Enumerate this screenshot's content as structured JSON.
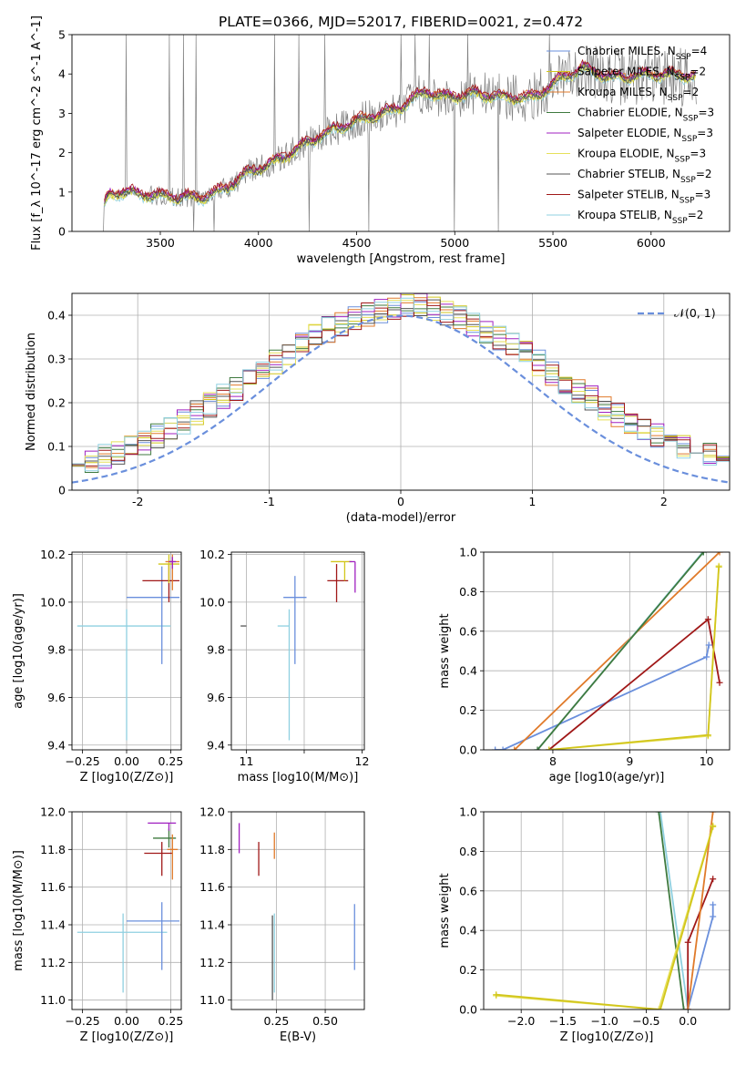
{
  "figure_title": "PLATE=0366, MJD=52017, FIBERID=0021, z=0.472",
  "colors": {
    "chabrier_miles": "#6a8fdc",
    "salpeter_miles": "#d2c61c",
    "kroupa_miles": "#e07a2a",
    "chabrier_elodie": "#3f7a3f",
    "salpeter_elodie": "#a020c0",
    "kroupa_elodie": "#e6e05a",
    "chabrier_stelib": "#555555",
    "salpeter_stelib": "#a01818",
    "kroupa_stelib": "#8fd0e0",
    "data": "#808080",
    "normal": "#6a8fdc"
  },
  "chart_data": [
    {
      "id": "spectrum",
      "type": "line",
      "title": "PLATE=0366, MJD=52017, FIBERID=0021, z=0.472",
      "xlabel": "wavelength [Angstrom, rest frame]",
      "ylabel": "Flux [f_λ 10^-17 erg cm^-2 s^-1 A^-1]",
      "xlim": [
        3050,
        6400
      ],
      "ylim": [
        0,
        5
      ],
      "xticks": [
        3500,
        4000,
        4500,
        5000,
        5500,
        6000
      ],
      "yticks": [
        0,
        1,
        2,
        3,
        4,
        5
      ],
      "grid": false,
      "legend_position": "top-right",
      "legend": [
        {
          "key": "chabrier_miles",
          "text": "Chabrier MILES, N_SSP=4"
        },
        {
          "key": "salpeter_miles",
          "text": "Salpeter MILES, N_SSP=2"
        },
        {
          "key": "kroupa_miles",
          "text": "Kroupa MILES, N_SSP=2"
        },
        {
          "key": "chabrier_elodie",
          "text": "Chabrier ELODIE, N_SSP=3"
        },
        {
          "key": "salpeter_elodie",
          "text": "Salpeter ELODIE, N_SSP=3"
        },
        {
          "key": "kroupa_elodie",
          "text": "Kroupa ELODIE, N_SSP=3"
        },
        {
          "key": "chabrier_stelib",
          "text": "Chabrier STELIB, N_SSP=2"
        },
        {
          "key": "salpeter_stelib",
          "text": "Salpeter STELIB, N_SSP=3"
        },
        {
          "key": "kroupa_stelib",
          "text": "Kroupa STELIB, N_SSP=2"
        }
      ],
      "continuum": {
        "x": [
          3210,
          3240,
          3300,
          3500,
          3700,
          3800,
          3950,
          4100,
          4300,
          4500,
          4700,
          4850,
          4950,
          5100,
          5250,
          5400,
          5550,
          5650,
          5800,
          6000,
          6200
        ],
        "y": [
          0.6,
          0.95,
          1.0,
          0.9,
          0.85,
          1.0,
          1.5,
          1.8,
          2.4,
          2.8,
          3.1,
          3.55,
          3.4,
          3.5,
          3.4,
          3.4,
          3.9,
          4.15,
          3.9,
          4.0,
          3.95
        ]
      },
      "model_offsets": {
        "chabrier_miles": 0.02,
        "salpeter_miles": -0.03,
        "kroupa_miles": 0.05,
        "chabrier_elodie": 0.0,
        "salpeter_elodie": 0.04,
        "kroupa_elodie": -0.05,
        "chabrier_stelib": -0.02,
        "salpeter_stelib": 0.08,
        "kroupa_stelib": -0.08
      }
    },
    {
      "id": "residuals",
      "type": "line",
      "xlabel": "(data-model)/error",
      "ylabel": "Normed distribution",
      "xlim": [
        -2.5,
        2.5
      ],
      "ylim": [
        0,
        0.45
      ],
      "xticks": [
        -2,
        -1,
        0,
        1,
        2
      ],
      "yticks": [
        0,
        0.1,
        0.2,
        0.3,
        0.4
      ],
      "grid": true,
      "legend_position": "top-right",
      "legend": [
        {
          "key": "normal",
          "text": "𝒩(0, 1)"
        }
      ],
      "bin_width": 0.1,
      "bin_start": -2.5
    },
    {
      "id": "age-vs-Z",
      "type": "scatter",
      "xlabel": "Z [log10(Z/Z⊙)]",
      "ylabel": "age  [log10(age/yr)]",
      "xlim": [
        -0.31,
        0.31
      ],
      "ylim": [
        9.38,
        10.21
      ],
      "xticks": [
        -0.25,
        0.0,
        0.25
      ],
      "xticklabels": [
        "−0.25",
        "0.00",
        "0.25"
      ],
      "yticks": [
        9.4,
        9.6,
        9.8,
        10.0,
        10.2
      ],
      "yticklabels": [
        "9.4",
        "9.6",
        "9.8",
        "10.0",
        "10.2"
      ],
      "grid": true,
      "points": [
        {
          "key": "kroupa_stelib",
          "x": 0.0,
          "y": 9.9,
          "xerr": [
            0.28,
            0.25
          ],
          "yerr": [
            0.48,
            0.07
          ]
        },
        {
          "key": "chabrier_miles",
          "x": 0.2,
          "y": 10.02,
          "xerr": [
            0.2,
            0.1
          ],
          "yerr": [
            0.28,
            0.13
          ]
        },
        {
          "key": "salpeter_stelib",
          "x": 0.24,
          "y": 10.09,
          "xerr": [
            0.15,
            0.06
          ],
          "yerr": [
            0.09,
            0.07
          ]
        },
        {
          "key": "salpeter_miles",
          "x": 0.24,
          "y": 10.16,
          "xerr": [
            0.06,
            0.06
          ],
          "yerr": [
            0.08,
            0.04
          ]
        },
        {
          "key": "kroupa_miles",
          "x": 0.26,
          "y": 10.17,
          "xerr": [
            0.04,
            0.04
          ],
          "yerr": [
            0.12,
            0.03
          ]
        },
        {
          "key": "salpeter_elodie",
          "x": 0.26,
          "y": 10.17,
          "xerr": [
            0.02,
            0.02
          ],
          "yerr": [
            0.03,
            0.02
          ]
        }
      ]
    },
    {
      "id": "age-vs-mass",
      "type": "scatter",
      "xlabel": "mass [log10(M/M⊙)]",
      "ylabel": "",
      "xlim": [
        10.87,
        12.02
      ],
      "ylim": [
        9.38,
        10.21
      ],
      "xticks": [
        11,
        11.5,
        12
      ],
      "xticklabels": [
        "11",
        "",
        "12"
      ],
      "yticks": [
        9.4,
        9.6,
        9.8,
        10.0,
        10.2
      ],
      "yticklabels": [
        "9.4",
        "9.6",
        "9.8",
        "10.0",
        "10.2"
      ],
      "grid": true,
      "points": [
        {
          "key": "kroupa_stelib",
          "x": 11.37,
          "y": 9.9,
          "xerr": [
            0.1,
            0.0
          ],
          "yerr": [
            0.48,
            0.07
          ]
        },
        {
          "key": "chabrier_stelib",
          "x": 11.0,
          "y": 9.9,
          "xerr": [
            0.05,
            0.0
          ],
          "yerr": [
            0.0,
            0.0
          ]
        },
        {
          "key": "chabrier_miles",
          "x": 11.42,
          "y": 10.02,
          "xerr": [
            0.1,
            0.1
          ],
          "yerr": [
            0.28,
            0.09
          ]
        },
        {
          "key": "salpeter_stelib",
          "x": 11.78,
          "y": 10.09,
          "xerr": [
            0.08,
            0.1
          ],
          "yerr": [
            0.09,
            0.07
          ]
        },
        {
          "key": "salpeter_miles",
          "x": 11.85,
          "y": 10.17,
          "xerr": [
            0.12,
            0.06
          ],
          "yerr": [
            0.08,
            0.0
          ]
        },
        {
          "key": "salpeter_elodie",
          "x": 11.94,
          "y": 10.17,
          "xerr": [
            0.05,
            0.0
          ],
          "yerr": [
            0.13,
            0.0
          ]
        }
      ]
    },
    {
      "id": "weight-vs-age",
      "type": "line",
      "xlabel": "age  [log10(age/yr)]",
      "ylabel": "mass weight",
      "xlim": [
        7.1,
        10.3
      ],
      "ylim": [
        0,
        1
      ],
      "xticks": [
        8,
        9,
        10
      ],
      "yticks": [
        0,
        0.2,
        0.4,
        0.6,
        0.8,
        1.0
      ],
      "yticklabels": [
        "0.0",
        "0.2",
        "0.4",
        "0.6",
        "0.8",
        "1.0"
      ],
      "grid": true,
      "series": [
        {
          "key": "chabrier_miles",
          "x": [
            7.25,
            7.35,
            10.0,
            10.03
          ],
          "y": [
            0.0,
            0.0,
            0.47,
            0.53
          ]
        },
        {
          "key": "kroupa_miles",
          "x": [
            7.5,
            10.17
          ],
          "y": [
            0.0,
            1.0
          ]
        },
        {
          "key": "salpeter_stelib",
          "x": [
            7.95,
            10.02,
            10.17
          ],
          "y": [
            0.0,
            0.66,
            0.34
          ]
        },
        {
          "key": "kroupa_stelib",
          "x": [
            7.8,
            9.95
          ],
          "y": [
            0.0,
            1.0
          ]
        },
        {
          "key": "chabrier_elodie",
          "x": [
            7.8,
            9.96
          ],
          "y": [
            0.0,
            1.0
          ]
        },
        {
          "key": "kroupa_elodie",
          "x": [
            7.95,
            10.02,
            10.16
          ],
          "y": [
            0.0,
            0.07,
            0.93
          ]
        },
        {
          "key": "salpeter_miles",
          "x": [
            7.95,
            10.02,
            10.16
          ],
          "y": [
            0.0,
            0.075,
            0.925
          ]
        }
      ]
    },
    {
      "id": "mass-vs-Z",
      "type": "scatter",
      "xlabel": "Z [log10(Z/Z⊙)]",
      "ylabel": "mass [log10(M/M⊙)]",
      "xlim": [
        -0.31,
        0.31
      ],
      "ylim": [
        10.95,
        12.0
      ],
      "xticks": [
        -0.25,
        0.0,
        0.25
      ],
      "xticklabels": [
        "−0.25",
        "0.00",
        "0.25"
      ],
      "yticks": [
        11.0,
        11.2,
        11.4,
        11.6,
        11.8,
        12.0
      ],
      "yticklabels": [
        "11.0",
        "11.2",
        "11.4",
        "11.6",
        "11.8",
        "12.0"
      ],
      "grid": true,
      "points": [
        {
          "key": "kroupa_stelib",
          "x": -0.02,
          "y": 11.36,
          "xerr": [
            0.26,
            0.25
          ],
          "yerr": [
            0.32,
            0.1
          ]
        },
        {
          "key": "chabrier_miles",
          "x": 0.2,
          "y": 11.42,
          "xerr": [
            0.2,
            0.1
          ],
          "yerr": [
            0.26,
            0.1
          ]
        },
        {
          "key": "salpeter_stelib",
          "x": 0.2,
          "y": 11.78,
          "xerr": [
            0.1,
            0.06
          ],
          "yerr": [
            0.12,
            0.06
          ]
        },
        {
          "key": "chabrier_elodie",
          "x": 0.24,
          "y": 11.86,
          "xerr": [
            0.09,
            0.04
          ],
          "yerr": [
            0.05,
            0.05
          ]
        },
        {
          "key": "salpeter_elodie",
          "x": 0.24,
          "y": 11.94,
          "xerr": [
            0.12,
            0.04
          ],
          "yerr": [
            0.04,
            0.0
          ]
        },
        {
          "key": "kroupa_miles",
          "x": 0.26,
          "y": 11.8,
          "xerr": [
            0.03,
            0.03
          ],
          "yerr": [
            0.16,
            0.08
          ]
        }
      ]
    },
    {
      "id": "mass-vs-EBV",
      "type": "scatter",
      "xlabel": "E(B-V)",
      "ylabel": "",
      "xlim": [
        0.02,
        0.7
      ],
      "ylim": [
        10.95,
        12.0
      ],
      "xticks": [
        0.25,
        0.5
      ],
      "xticklabels": [
        "0.25",
        "0.50"
      ],
      "yticks": [
        11.0,
        11.2,
        11.4,
        11.6,
        11.8,
        12.0
      ],
      "yticklabels": [
        "11.0",
        "11.2",
        "11.4",
        "11.6",
        "11.8",
        "12.0"
      ],
      "grid": true,
      "points": [
        {
          "key": "chabrier_stelib",
          "x": 0.23,
          "y": 11.2,
          "xerr": [
            0,
            0
          ],
          "yerr": [
            0.2,
            0.25
          ]
        },
        {
          "key": "kroupa_stelib",
          "x": 0.24,
          "y": 11.36,
          "xerr": [
            0,
            0
          ],
          "yerr": [
            0.32,
            0.1
          ]
        },
        {
          "key": "chabrier_miles",
          "x": 0.65,
          "y": 11.33,
          "xerr": [
            0,
            0
          ],
          "yerr": [
            0.17,
            0.18
          ]
        },
        {
          "key": "salpeter_stelib",
          "x": 0.16,
          "y": 11.78,
          "xerr": [
            0,
            0
          ],
          "yerr": [
            0.12,
            0.06
          ]
        },
        {
          "key": "salpeter_elodie",
          "x": 0.06,
          "y": 11.88,
          "xerr": [
            0,
            0
          ],
          "yerr": [
            0.1,
            0.06
          ]
        },
        {
          "key": "kroupa_miles",
          "x": 0.24,
          "y": 11.8,
          "xerr": [
            0,
            0
          ],
          "yerr": [
            0.05,
            0.09
          ]
        }
      ]
    },
    {
      "id": "weight-vs-Z",
      "type": "line",
      "xlabel": "Z [log10(Z/Z⊙)]",
      "ylabel": "mass weight",
      "xlim": [
        -2.45,
        0.5
      ],
      "ylim": [
        0,
        1
      ],
      "xticks": [
        -2.0,
        -1.5,
        -1.0,
        -0.5,
        0.0
      ],
      "xticklabels": [
        "−2.0",
        "−1.5",
        "−1.0",
        "−0.5",
        "0.0"
      ],
      "yticks": [
        0,
        0.2,
        0.4,
        0.6,
        0.8,
        1.0
      ],
      "yticklabels": [
        "0.0",
        "0.2",
        "0.4",
        "0.6",
        "0.8",
        "1.0"
      ],
      "grid": true,
      "series": [
        {
          "key": "kroupa_stelib",
          "x": [
            -0.33,
            0.0
          ],
          "y": [
            1.0,
            0.0
          ]
        },
        {
          "key": "chabrier_elodie",
          "x": [
            -0.35,
            -0.05
          ],
          "y": [
            1.0,
            0.0
          ]
        },
        {
          "key": "chabrier_miles",
          "x": [
            0.0,
            0.3,
            0.3
          ],
          "y": [
            0.0,
            0.47,
            0.53
          ]
        },
        {
          "key": "salpeter_stelib",
          "x": [
            0.0,
            0.0,
            0.3
          ],
          "y": [
            0.0,
            0.34,
            0.66
          ]
        },
        {
          "key": "kroupa_miles",
          "x": [
            0.0,
            0.3
          ],
          "y": [
            0.0,
            1.0
          ]
        },
        {
          "key": "kroupa_elodie",
          "x": [
            -2.3,
            -0.35,
            0.3
          ],
          "y": [
            0.07,
            0.0,
            0.93
          ]
        },
        {
          "key": "salpeter_miles",
          "x": [
            -2.3,
            -0.33,
            0.3
          ],
          "y": [
            0.075,
            0.0,
            0.925
          ]
        }
      ]
    }
  ]
}
